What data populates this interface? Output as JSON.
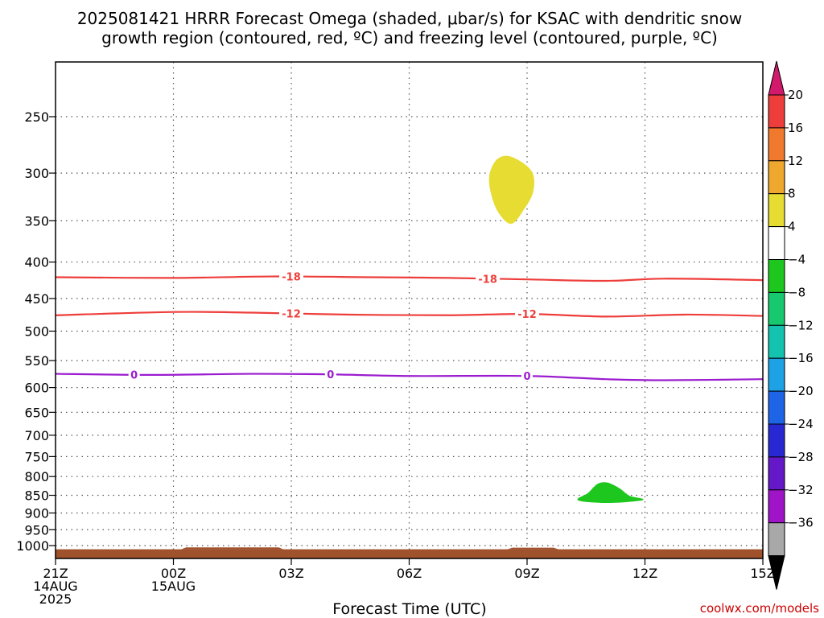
{
  "chart_data": {
    "type": "time-height-cross-section",
    "title_line1": "2025081421 HRRR Forecast Omega (shaded, μbar/s) for KSAC with dendritic snow",
    "title_line2": "growth region (contoured, red, ºC) and freezing level (contoured, purple, ºC)",
    "xlabel": "Forecast Time (UTC)",
    "credit": "coolwx.com/models",
    "x_range_hours": [
      0,
      18
    ],
    "x_ticks": [
      {
        "hour": 0,
        "lines": [
          "21Z",
          "14AUG",
          "2025"
        ]
      },
      {
        "hour": 3,
        "lines": [
          "00Z",
          "15AUG"
        ]
      },
      {
        "hour": 6,
        "lines": [
          "03Z"
        ]
      },
      {
        "hour": 9,
        "lines": [
          "06Z"
        ]
      },
      {
        "hour": 12,
        "lines": [
          "09Z"
        ]
      },
      {
        "hour": 15,
        "lines": [
          "12Z"
        ]
      },
      {
        "hour": 18,
        "lines": [
          "15Z"
        ]
      }
    ],
    "y_axis": {
      "scale": "log",
      "inverted": true,
      "range_mb": [
        200,
        1050
      ],
      "ticks": [
        250,
        300,
        350,
        400,
        450,
        500,
        550,
        600,
        650,
        700,
        750,
        800,
        850,
        900,
        950,
        1000
      ]
    },
    "grid": "dotted",
    "colorbar": {
      "ticks": [
        "20",
        "16",
        "12",
        "8",
        "4",
        "−4",
        "−8",
        "−12",
        "−16",
        "−20",
        "−24",
        "−28",
        "−32",
        "−36"
      ],
      "bins": [
        {
          "color": "#d2196c"
        },
        {
          "color": "#ee3e3b"
        },
        {
          "color": "#f1792e"
        },
        {
          "color": "#f0a72e"
        },
        {
          "color": "#e6dc32"
        },
        {
          "color": "#ffffff"
        },
        {
          "color": "#1ec71e"
        },
        {
          "color": "#16c86e"
        },
        {
          "color": "#14c2b0"
        },
        {
          "color": "#1ea2e6"
        },
        {
          "color": "#1e64e6"
        },
        {
          "color": "#2828d2"
        },
        {
          "color": "#6418c8"
        },
        {
          "color": "#a014c8"
        },
        {
          "color": "#a8a8a8"
        },
        {
          "color": "#000000"
        }
      ]
    },
    "contours": [
      {
        "label": "-18",
        "color": "#ee3e3b",
        "points": [
          [
            0,
            420
          ],
          [
            3,
            421
          ],
          [
            5.5,
            419
          ],
          [
            8,
            420
          ],
          [
            10,
            421
          ],
          [
            12,
            423
          ],
          [
            14,
            425
          ],
          [
            15.5,
            422
          ],
          [
            18,
            424
          ]
        ],
        "label_hours": [
          6,
          11
        ]
      },
      {
        "label": "-12",
        "color": "#ee3e3b",
        "points": [
          [
            0,
            475
          ],
          [
            3,
            470
          ],
          [
            5,
            471
          ],
          [
            7.5,
            474
          ],
          [
            10,
            475
          ],
          [
            12,
            473
          ],
          [
            14,
            477
          ],
          [
            16,
            474
          ],
          [
            18,
            476
          ]
        ],
        "label_hours": [
          6,
          12
        ]
      },
      {
        "label": "0",
        "color": "#9b1ccf",
        "points": [
          [
            0,
            574
          ],
          [
            2.5,
            576
          ],
          [
            5,
            574
          ],
          [
            7,
            575
          ],
          [
            9,
            578
          ],
          [
            12,
            578
          ],
          [
            14,
            584
          ],
          [
            15.5,
            586
          ],
          [
            18,
            584
          ]
        ],
        "label_hours": [
          2,
          7,
          12
        ]
      }
    ],
    "shaded_regions": [
      {
        "range": "4 to 8 μbar/s",
        "color": "#e6dc32",
        "outline": [
          [
            11.25,
            287
          ],
          [
            11.6,
            285
          ],
          [
            12.1,
            298
          ],
          [
            12.15,
            318
          ],
          [
            11.9,
            338
          ],
          [
            11.6,
            353
          ],
          [
            11.3,
            342
          ],
          [
            11.1,
            322
          ],
          [
            11.05,
            302
          ]
        ]
      },
      {
        "range": "−4 to −8 μbar/s",
        "color": "#1ec71e",
        "outline": [
          [
            13.3,
            863
          ],
          [
            13.55,
            845
          ],
          [
            13.8,
            820
          ],
          [
            14.05,
            817
          ],
          [
            14.35,
            832
          ],
          [
            14.6,
            852
          ],
          [
            14.95,
            862
          ],
          [
            14.5,
            868
          ],
          [
            13.9,
            870
          ]
        ]
      }
    ],
    "terrain": {
      "color": "#a0522d",
      "base_mb": 1012,
      "top_mb": 1050,
      "bumps": [
        {
          "from": 3.2,
          "to": 5.8,
          "top_mb": 1006
        },
        {
          "from": 11.5,
          "to": 12.8,
          "top_mb": 1007
        }
      ]
    }
  }
}
